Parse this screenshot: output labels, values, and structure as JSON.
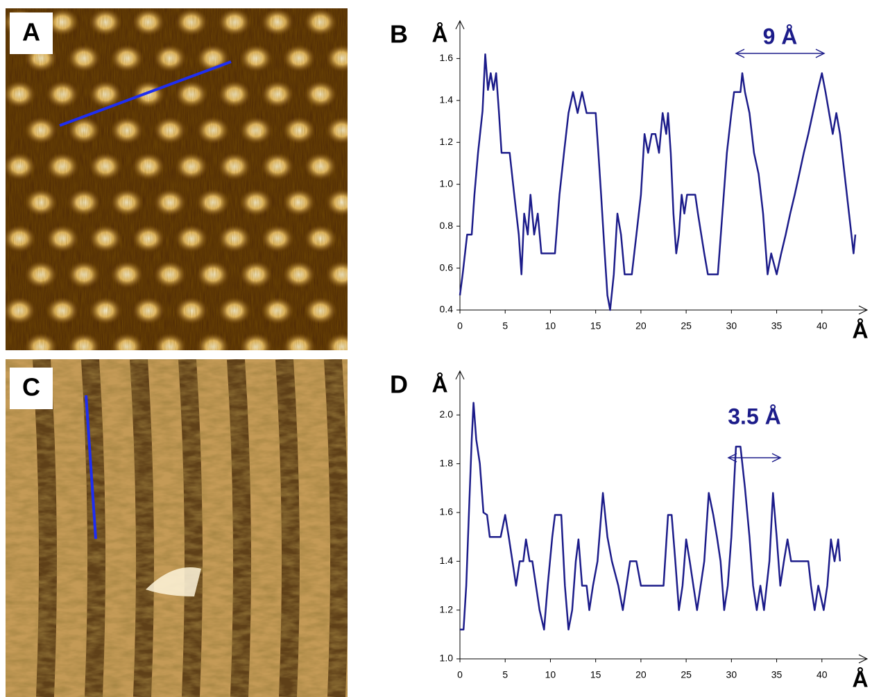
{
  "images": [
    {
      "label": "A"
    },
    {
      "label": "C"
    }
  ],
  "chart_data": [
    {
      "type": "line",
      "panel": "B",
      "ylabel": "Å",
      "xlabel": "Å",
      "annotation": "9 Å",
      "xlim": [
        0,
        45
      ],
      "ylim": [
        0.4,
        1.78
      ],
      "xticks": [
        0,
        5,
        10,
        15,
        20,
        25,
        30,
        35,
        40
      ],
      "yticks": [
        0.4,
        0.6,
        0.8,
        {
          "value": 1.0,
          "label": "1.0"
        },
        1.2,
        1.4,
        1.6
      ],
      "series": [
        {
          "color": "#1c1c8a",
          "x": [
            0,
            0.3,
            0.8,
            1.3,
            1.6,
            2,
            2.5,
            2.8,
            3.1,
            3.4,
            3.7,
            4,
            4.3,
            4.6,
            5.5,
            6,
            6.5,
            6.8,
            7.1,
            7.5,
            7.8,
            8.2,
            8.6,
            9,
            10.5,
            11,
            11.5,
            12,
            12.5,
            13,
            13.5,
            14,
            15,
            15.3,
            15.6,
            16,
            16.3,
            16.6,
            17,
            17.4,
            17.8,
            18.2,
            19,
            19.5,
            20,
            20.4,
            20.8,
            21.2,
            21.6,
            22,
            22.4,
            22.8,
            23,
            23.3,
            23.6,
            23.9,
            24.2,
            24.5,
            24.8,
            25.1,
            26,
            26.3,
            27,
            27.4,
            28.5,
            29,
            29.5,
            30,
            30.3,
            31,
            31.2,
            31.5,
            32,
            32.5,
            33,
            33.5,
            34,
            34.4,
            35,
            35.5,
            36,
            36.5,
            37,
            37.5,
            38,
            38.5,
            39,
            39.5,
            40,
            40.4,
            40.8,
            41.2,
            41.6,
            42,
            42.5,
            43,
            43.5,
            43.7
          ],
          "values": [
            0.47,
            0.57,
            0.76,
            0.76,
            0.95,
            1.15,
            1.35,
            1.62,
            1.45,
            1.53,
            1.45,
            1.53,
            1.35,
            1.15,
            1.15,
            0.95,
            0.76,
            0.57,
            0.86,
            0.76,
            0.95,
            0.76,
            0.86,
            0.67,
            0.67,
            0.95,
            1.15,
            1.34,
            1.44,
            1.34,
            1.44,
            1.34,
            1.34,
            1.15,
            0.95,
            0.67,
            0.47,
            0.4,
            0.57,
            0.86,
            0.76,
            0.57,
            0.57,
            0.76,
            0.95,
            1.24,
            1.15,
            1.24,
            1.24,
            1.15,
            1.34,
            1.24,
            1.34,
            1.15,
            0.86,
            0.67,
            0.76,
            0.95,
            0.86,
            0.95,
            0.95,
            0.86,
            0.67,
            0.57,
            0.57,
            0.86,
            1.15,
            1.34,
            1.44,
            1.44,
            1.53,
            1.44,
            1.34,
            1.15,
            1.05,
            0.86,
            0.57,
            0.67,
            0.57,
            0.67,
            0.76,
            0.86,
            0.95,
            1.05,
            1.15,
            1.24,
            1.34,
            1.44,
            1.53,
            1.44,
            1.34,
            1.24,
            1.34,
            1.24,
            1.05,
            0.86,
            0.67,
            0.76
          ]
        }
      ]
    },
    {
      "type": "line",
      "panel": "D",
      "ylabel": "Å",
      "xlabel": "Å",
      "annotation": "3.5 Å",
      "xlim": [
        0,
        45
      ],
      "ylim": [
        1.0,
        2.18
      ],
      "xticks": [
        0,
        5,
        10,
        15,
        20,
        25,
        30,
        35,
        40
      ],
      "yticks": [
        {
          "value": 1.0,
          "label": "1.0"
        },
        1.2,
        1.4,
        1.6,
        1.8,
        {
          "value": 2.0,
          "label": "2.0"
        }
      ],
      "series": [
        {
          "color": "#1c1c8a",
          "x": [
            0,
            0.4,
            0.7,
            1,
            1.3,
            1.5,
            1.8,
            2.2,
            2.6,
            3,
            3.3,
            4.5,
            5,
            5.4,
            5.8,
            6.2,
            6.6,
            7,
            7.3,
            7.7,
            8,
            8.4,
            8.8,
            9.3,
            9.7,
            10.2,
            10.5,
            11.2,
            11.6,
            12,
            12.4,
            12.8,
            13.1,
            13.5,
            14,
            14.3,
            14.7,
            15.2,
            15.8,
            16.3,
            16.8,
            17.5,
            18,
            18.4,
            18.8,
            19.5,
            20,
            22.5,
            23,
            23.4,
            23.8,
            24.2,
            24.6,
            25,
            25.4,
            25.8,
            26.2,
            26.6,
            27,
            27.5,
            28,
            28.4,
            28.8,
            29.2,
            29.6,
            30,
            30.5,
            31,
            31.5,
            32,
            32.4,
            32.8,
            33.2,
            33.6,
            34.2,
            34.6,
            35,
            35.4,
            35.8,
            36.2,
            36.6,
            38.5,
            38.8,
            39.2,
            39.6,
            40.2,
            40.6,
            41,
            41.4,
            41.8,
            42
          ],
          "values": [
            1.12,
            1.12,
            1.3,
            1.6,
            1.9,
            2.05,
            1.9,
            1.8,
            1.6,
            1.59,
            1.5,
            1.5,
            1.59,
            1.5,
            1.4,
            1.3,
            1.4,
            1.4,
            1.49,
            1.4,
            1.4,
            1.3,
            1.2,
            1.12,
            1.3,
            1.5,
            1.59,
            1.59,
            1.3,
            1.12,
            1.2,
            1.4,
            1.49,
            1.3,
            1.3,
            1.2,
            1.3,
            1.4,
            1.68,
            1.5,
            1.4,
            1.3,
            1.2,
            1.3,
            1.4,
            1.4,
            1.3,
            1.3,
            1.59,
            1.59,
            1.4,
            1.2,
            1.3,
            1.49,
            1.4,
            1.3,
            1.2,
            1.3,
            1.4,
            1.68,
            1.59,
            1.5,
            1.4,
            1.2,
            1.3,
            1.5,
            1.87,
            1.87,
            1.7,
            1.5,
            1.3,
            1.2,
            1.3,
            1.2,
            1.4,
            1.68,
            1.5,
            1.3,
            1.4,
            1.49,
            1.4,
            1.4,
            1.3,
            1.2,
            1.3,
            1.2,
            1.3,
            1.49,
            1.4,
            1.49,
            1.4
          ]
        }
      ]
    }
  ]
}
